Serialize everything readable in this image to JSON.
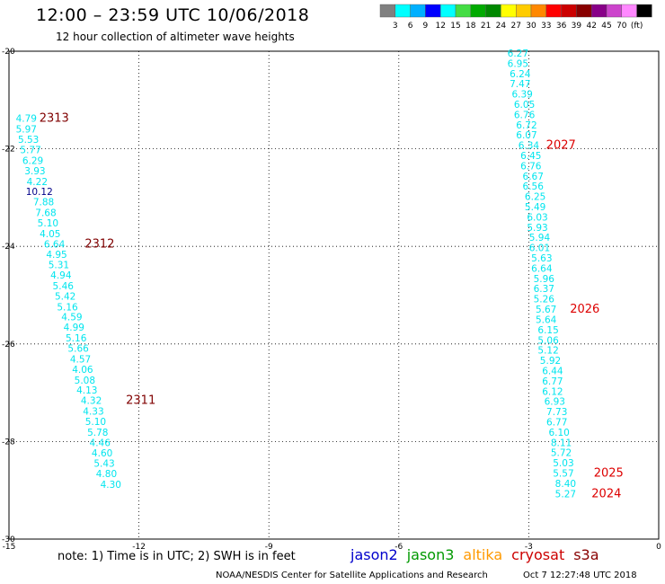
{
  "title": "12:00 – 23:59 UTC 10/06/2018",
  "subtitle": "12 hour collection of altimeter wave heights",
  "colorbar": {
    "colors": [
      "#808080",
      "#00ffff",
      "#00b0ff",
      "#0000ff",
      "#00ffff",
      "#44dd44",
      "#00aa00",
      "#008800",
      "#ffff00",
      "#ffcc00",
      "#ff8800",
      "#ff0000",
      "#cc0000",
      "#880000",
      "#880088",
      "#cc44cc",
      "#ff88ff",
      "#000000"
    ],
    "labels": [
      "3",
      "6",
      "9",
      "12",
      "15",
      "18",
      "21",
      "24",
      "27",
      "30",
      "33",
      "36",
      "39",
      "42",
      "45",
      "70",
      "(ft)"
    ]
  },
  "axes": {
    "x_ticks": [
      "-15",
      "-12",
      "-9",
      "-6",
      "-3",
      "0"
    ],
    "y_ticks": [
      "-20",
      "-22",
      "-24",
      "-26",
      "-28",
      "-30"
    ],
    "x_range": [
      -15,
      0
    ],
    "y_range": [
      -30,
      -20
    ]
  },
  "chart_data": {
    "type": "scatter",
    "tracks": [
      {
        "points": [
          {
            "lon": -14.6,
            "lat": -21.45,
            "v": "4.79",
            "c": "#00e5ee"
          },
          {
            "lon": -14.6,
            "lat": -21.67,
            "v": "5.97",
            "c": "#00e5ee"
          },
          {
            "lon": -14.55,
            "lat": -21.88,
            "v": "5.53",
            "c": "#00e5ee"
          },
          {
            "lon": -14.5,
            "lat": -22.09,
            "v": "5.77",
            "c": "#00e5ee"
          },
          {
            "lon": -14.45,
            "lat": -22.31,
            "v": "6.29",
            "c": "#00e5ee"
          },
          {
            "lon": -14.4,
            "lat": -22.52,
            "v": "3.93",
            "c": "#00e5ee"
          },
          {
            "lon": -14.35,
            "lat": -22.74,
            "v": "4.22",
            "c": "#00e5ee"
          },
          {
            "lon": -14.3,
            "lat": -22.95,
            "v": "10.12",
            "c": "#000088"
          },
          {
            "lon": -14.2,
            "lat": -23.16,
            "v": "7.88",
            "c": "#00e5ee"
          },
          {
            "lon": -14.15,
            "lat": -23.38,
            "v": "7.68",
            "c": "#00e5ee"
          },
          {
            "lon": -14.1,
            "lat": -23.59,
            "v": "5.10",
            "c": "#00e5ee"
          },
          {
            "lon": -14.05,
            "lat": -23.81,
            "v": "4.05",
            "c": "#00e5ee"
          },
          {
            "lon": -13.95,
            "lat": -24.02,
            "v": "6.64",
            "c": "#00e5ee"
          },
          {
            "lon": -13.9,
            "lat": -24.24,
            "v": "4.95",
            "c": "#00e5ee"
          },
          {
            "lon": -13.85,
            "lat": -24.45,
            "v": "5.31",
            "c": "#00e5ee"
          },
          {
            "lon": -13.8,
            "lat": -24.66,
            "v": "4.94",
            "c": "#00e5ee"
          },
          {
            "lon": -13.75,
            "lat": -24.88,
            "v": "5.46",
            "c": "#00e5ee"
          },
          {
            "lon": -13.7,
            "lat": -25.09,
            "v": "5.42",
            "c": "#00e5ee"
          },
          {
            "lon": -13.65,
            "lat": -25.31,
            "v": "5.16",
            "c": "#00e5ee"
          },
          {
            "lon": -13.55,
            "lat": -25.52,
            "v": "4.59",
            "c": "#00e5ee"
          },
          {
            "lon": -13.5,
            "lat": -25.73,
            "v": "4.99",
            "c": "#00e5ee"
          },
          {
            "lon": -13.45,
            "lat": -25.95,
            "v": "5.16",
            "c": "#00e5ee"
          },
          {
            "lon": -13.4,
            "lat": -26.16,
            "v": "5.66",
            "c": "#00e5ee"
          },
          {
            "lon": -13.35,
            "lat": -26.38,
            "v": "4.57",
            "c": "#00e5ee"
          },
          {
            "lon": -13.3,
            "lat": -26.59,
            "v": "4.06",
            "c": "#00e5ee"
          },
          {
            "lon": -13.25,
            "lat": -26.81,
            "v": "5.08",
            "c": "#00e5ee"
          },
          {
            "lon": -13.2,
            "lat": -27.02,
            "v": "4.13",
            "c": "#00e5ee"
          },
          {
            "lon": -13.1,
            "lat": -27.23,
            "v": "4.32",
            "c": "#00e5ee"
          },
          {
            "lon": -13.05,
            "lat": -27.45,
            "v": "4.33",
            "c": "#00e5ee"
          },
          {
            "lon": -13.0,
            "lat": -27.66,
            "v": "5.10",
            "c": "#00e5ee"
          },
          {
            "lon": -12.95,
            "lat": -27.88,
            "v": "5.78",
            "c": "#00e5ee"
          },
          {
            "lon": -12.9,
            "lat": -28.09,
            "v": "4.46",
            "c": "#00e5ee"
          },
          {
            "lon": -12.85,
            "lat": -28.31,
            "v": "4.60",
            "c": "#00e5ee"
          },
          {
            "lon": -12.8,
            "lat": -28.52,
            "v": "5.43",
            "c": "#00e5ee"
          },
          {
            "lon": -12.75,
            "lat": -28.73,
            "v": "4.80",
            "c": "#00e5ee"
          },
          {
            "lon": -12.65,
            "lat": -28.95,
            "v": "4.30",
            "c": "#00e5ee"
          }
        ]
      },
      {
        "points": [
          {
            "lon": -3.25,
            "lat": -20.11,
            "v": "6.27",
            "c": "#00e5ee"
          },
          {
            "lon": -3.25,
            "lat": -20.32,
            "v": "6.95",
            "c": "#00e5ee"
          },
          {
            "lon": -3.2,
            "lat": -20.53,
            "v": "6.24",
            "c": "#00e5ee"
          },
          {
            "lon": -3.2,
            "lat": -20.74,
            "v": "7.47",
            "c": "#00e5ee"
          },
          {
            "lon": -3.15,
            "lat": -20.95,
            "v": "6.39",
            "c": "#00e5ee"
          },
          {
            "lon": -3.1,
            "lat": -21.16,
            "v": "6.05",
            "c": "#00e5ee"
          },
          {
            "lon": -3.1,
            "lat": -21.37,
            "v": "6.76",
            "c": "#00e5ee"
          },
          {
            "lon": -3.05,
            "lat": -21.58,
            "v": "6.72",
            "c": "#00e5ee"
          },
          {
            "lon": -3.05,
            "lat": -21.79,
            "v": "6.07",
            "c": "#00e5ee"
          },
          {
            "lon": -3.0,
            "lat": -22.0,
            "v": "6.34",
            "c": "#00e5ee"
          },
          {
            "lon": -2.95,
            "lat": -22.21,
            "v": "6.45",
            "c": "#00e5ee"
          },
          {
            "lon": -2.95,
            "lat": -22.42,
            "v": "6.76",
            "c": "#00e5ee"
          },
          {
            "lon": -2.9,
            "lat": -22.63,
            "v": "6.67",
            "c": "#00e5ee"
          },
          {
            "lon": -2.9,
            "lat": -22.84,
            "v": "6.56",
            "c": "#00e5ee"
          },
          {
            "lon": -2.85,
            "lat": -23.05,
            "v": "6.25",
            "c": "#00e5ee"
          },
          {
            "lon": -2.85,
            "lat": -23.26,
            "v": "5.49",
            "c": "#00e5ee"
          },
          {
            "lon": -2.8,
            "lat": -23.47,
            "v": "6.03",
            "c": "#00e5ee"
          },
          {
            "lon": -2.8,
            "lat": -23.68,
            "v": "5.93",
            "c": "#00e5ee"
          },
          {
            "lon": -2.75,
            "lat": -23.89,
            "v": "5.94",
            "c": "#00e5ee"
          },
          {
            "lon": -2.75,
            "lat": -24.1,
            "v": "6.01",
            "c": "#00e5ee"
          },
          {
            "lon": -2.7,
            "lat": -24.31,
            "v": "5.63",
            "c": "#00e5ee"
          },
          {
            "lon": -2.7,
            "lat": -24.52,
            "v": "6.64",
            "c": "#00e5ee"
          },
          {
            "lon": -2.65,
            "lat": -24.73,
            "v": "5.96",
            "c": "#00e5ee"
          },
          {
            "lon": -2.65,
            "lat": -24.94,
            "v": "6.37",
            "c": "#00e5ee"
          },
          {
            "lon": -2.65,
            "lat": -25.15,
            "v": "5.26",
            "c": "#00e5ee"
          },
          {
            "lon": -2.6,
            "lat": -25.36,
            "v": "5.67",
            "c": "#00e5ee"
          },
          {
            "lon": -2.6,
            "lat": -25.57,
            "v": "5.64",
            "c": "#00e5ee"
          },
          {
            "lon": -2.55,
            "lat": -25.78,
            "v": "6.15",
            "c": "#00e5ee"
          },
          {
            "lon": -2.55,
            "lat": -25.99,
            "v": "5.06",
            "c": "#00e5ee"
          },
          {
            "lon": -2.55,
            "lat": -26.2,
            "v": "5.12",
            "c": "#00e5ee"
          },
          {
            "lon": -2.5,
            "lat": -26.41,
            "v": "5.92",
            "c": "#00e5ee"
          },
          {
            "lon": -2.45,
            "lat": -26.62,
            "v": "6.44",
            "c": "#00e5ee"
          },
          {
            "lon": -2.45,
            "lat": -26.83,
            "v": "6.77",
            "c": "#00e5ee"
          },
          {
            "lon": -2.45,
            "lat": -27.04,
            "v": "6.12",
            "c": "#00e5ee"
          },
          {
            "lon": -2.4,
            "lat": -27.25,
            "v": "6.93",
            "c": "#00e5ee"
          },
          {
            "lon": -2.35,
            "lat": -27.46,
            "v": "7.73",
            "c": "#00e5ee"
          },
          {
            "lon": -2.35,
            "lat": -27.67,
            "v": "6.77",
            "c": "#00e5ee"
          },
          {
            "lon": -2.3,
            "lat": -27.88,
            "v": "6.10",
            "c": "#00e5ee"
          },
          {
            "lon": -2.25,
            "lat": -28.09,
            "v": "8.11",
            "c": "#00e5ee"
          },
          {
            "lon": -2.25,
            "lat": -28.3,
            "v": "5.72",
            "c": "#00e5ee"
          },
          {
            "lon": -2.2,
            "lat": -28.51,
            "v": "5.03",
            "c": "#00e5ee"
          },
          {
            "lon": -2.2,
            "lat": -28.72,
            "v": "5.57",
            "c": "#00e5ee"
          },
          {
            "lon": -2.15,
            "lat": -28.93,
            "v": "8.40",
            "c": "#00e5ee"
          },
          {
            "lon": -2.15,
            "lat": -29.14,
            "v": "5.27",
            "c": "#00e5ee"
          }
        ]
      }
    ],
    "time_labels": [
      {
        "lon": -14.3,
        "lat": -21.45,
        "t": "2313",
        "c": "#800000"
      },
      {
        "lon": -13.25,
        "lat": -24.02,
        "t": "2312",
        "c": "#800000"
      },
      {
        "lon": -12.3,
        "lat": -27.23,
        "t": "2311",
        "c": "#800000"
      },
      {
        "lon": -2.6,
        "lat": -22.0,
        "t": "2027",
        "c": "#dd0000"
      },
      {
        "lon": -2.05,
        "lat": -25.36,
        "t": "2026",
        "c": "#dd0000"
      },
      {
        "lon": -1.5,
        "lat": -28.72,
        "t": "2025",
        "c": "#dd0000"
      },
      {
        "lon": -1.55,
        "lat": -29.14,
        "t": "2024",
        "c": "#dd0000"
      }
    ]
  },
  "note": "note:  1) Time is in UTC;  2) SWH is in feet",
  "satellites": [
    {
      "name": "jason2",
      "color": "#0000cc"
    },
    {
      "name": "jason3",
      "color": "#009900"
    },
    {
      "name": "altika",
      "color": "#ff9900"
    },
    {
      "name": "cryosat",
      "color": "#cc0000"
    },
    {
      "name": "s3a",
      "color": "#880000"
    }
  ],
  "credit": "NOAA/NESDIS Center for Satellite Applications and Research",
  "timestamp": "Oct  7 12:27:48 UTC 2018"
}
